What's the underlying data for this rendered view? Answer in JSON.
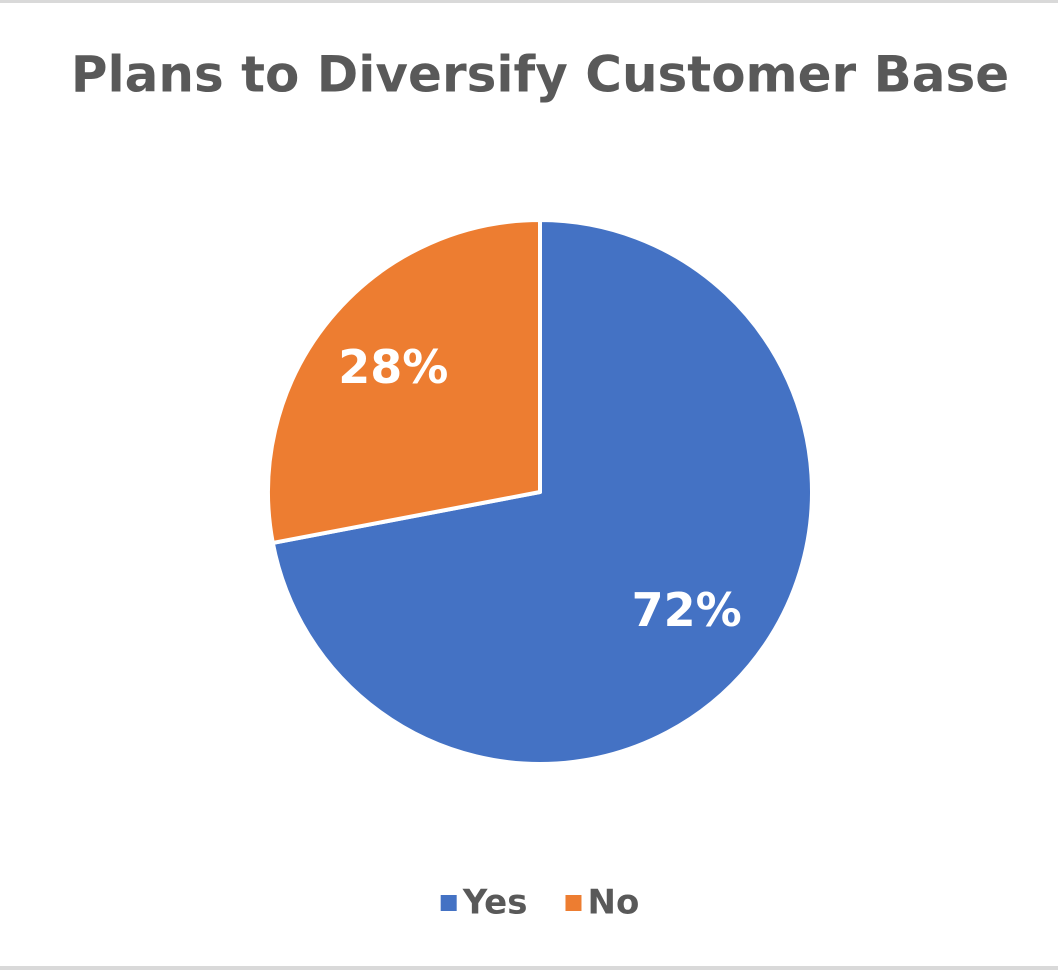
{
  "chart_data": {
    "type": "pie",
    "title": "Plans to Diversify Customer Base",
    "categories": [
      "Yes",
      "No"
    ],
    "values": [
      72,
      28
    ],
    "value_labels": [
      "72%",
      "28%"
    ],
    "colors": [
      "#4472c4",
      "#ed7d31"
    ],
    "legend": "bottom"
  }
}
